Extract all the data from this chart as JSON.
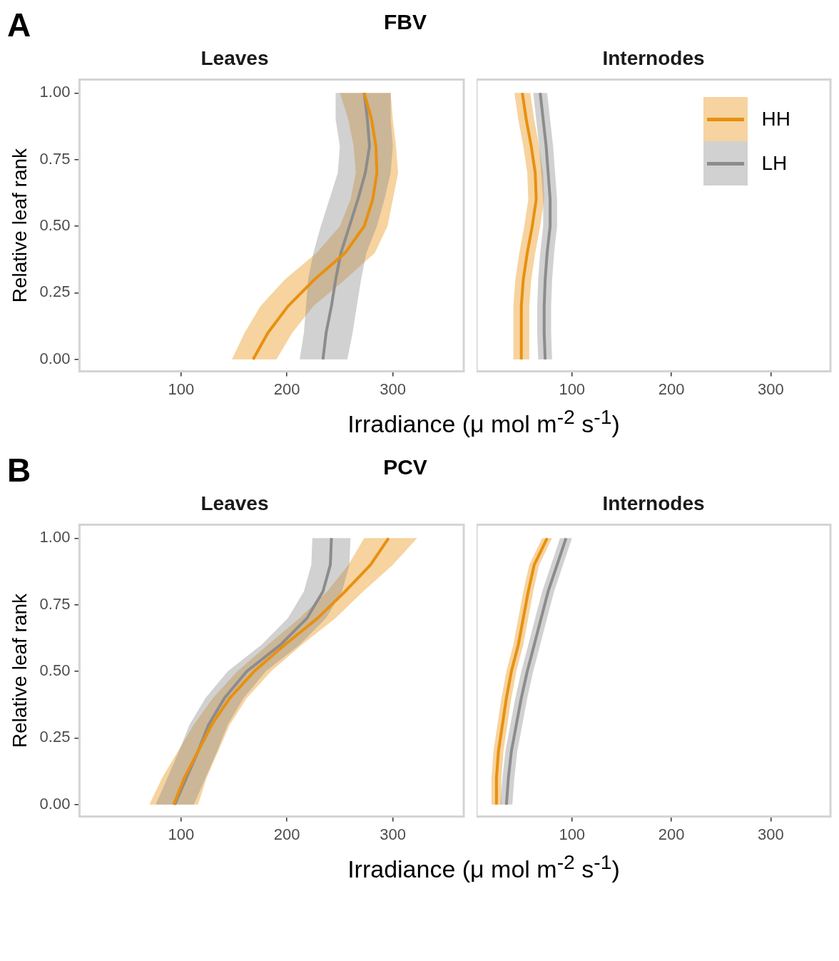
{
  "chart_data": [
    {
      "type": "line",
      "orientation": "horizontal",
      "title": "Leaves",
      "annotations": [
        "A",
        "FBV"
      ],
      "ylabel": "Relative leaf rank",
      "xlabel": "Irradiance (μ mol m$^{-2}$ s$^{-1}$)",
      "grid": false,
      "legend": false,
      "x": [
        0,
        0.1,
        0.2,
        0.3,
        0.4,
        0.5,
        0.6,
        0.7,
        0.8,
        0.9,
        1.0
      ],
      "xlim": [
        4,
        367
      ],
      "xticks": [
        100,
        200,
        300
      ],
      "ylim": [
        -0.045,
        1.05
      ],
      "yticks": [
        {
          "value": 0,
          "label": "0.00"
        },
        {
          "value": 0.25,
          "label": "0.25"
        },
        {
          "value": 0.5,
          "label": "0.50"
        },
        {
          "value": 0.75,
          "label": "0.75"
        },
        {
          "value": 1,
          "label": "1.00"
        }
      ],
      "series": [
        {
          "color": "#e8900f",
          "values": [
            168,
            182,
            201,
            226,
            255,
            273,
            281,
            285,
            284,
            280,
            273
          ],
          "lower": [
            148,
            160,
            175,
            198,
            228,
            250,
            260,
            265,
            263,
            258,
            250
          ],
          "upper": [
            190,
            205,
            225,
            255,
            283,
            295,
            300,
            305,
            303,
            300,
            298
          ]
        },
        {
          "color": "#8c8c8c",
          "values": [
            234,
            237,
            242,
            246,
            251,
            259,
            267,
            274,
            278,
            276,
            273
          ],
          "lower": [
            212,
            216,
            218,
            220,
            225,
            232,
            240,
            248,
            250,
            246,
            246
          ],
          "upper": [
            257,
            262,
            266,
            270,
            275,
            285,
            292,
            298,
            300,
            298,
            298
          ]
        }
      ]
    },
    {
      "type": "line",
      "orientation": "horizontal",
      "title": "Internodes",
      "grid": false,
      "legend": "top right",
      "tick_labels": "x",
      "x": [
        0,
        0.1,
        0.2,
        0.3,
        0.4,
        0.5,
        0.6,
        0.7,
        0.8,
        0.9,
        1.0
      ],
      "xlim": [
        4,
        360
      ],
      "xticks": [
        100,
        200,
        300
      ],
      "ylim": [
        -0.045,
        1.05
      ],
      "series": [
        {
          "name": "HH",
          "color": "#e8900f",
          "values": [
            49,
            49,
            49,
            51,
            55,
            60,
            64,
            63,
            59,
            54,
            50
          ],
          "lower": [
            41,
            41,
            41,
            43,
            47,
            52,
            56,
            55,
            51,
            46,
            42
          ],
          "upper": [
            57,
            57,
            57,
            59,
            63,
            68,
            72,
            71,
            67,
            62,
            58
          ]
        },
        {
          "name": "LH",
          "color": "#8c8c8c",
          "values": [
            73,
            72,
            72,
            73,
            75,
            78,
            78,
            76,
            74,
            71,
            68
          ],
          "lower": [
            66,
            65,
            65,
            66,
            68,
            71,
            71,
            69,
            67,
            64,
            61
          ],
          "upper": [
            80,
            79,
            79,
            80,
            82,
            85,
            85,
            83,
            81,
            78,
            75
          ]
        }
      ]
    },
    {
      "type": "line",
      "orientation": "horizontal",
      "title": "Leaves",
      "annotations": [
        "B",
        "PCV"
      ],
      "ylabel": "Relative leaf rank",
      "xlabel": "Irradiance (μ mol m$^{-2}$ s$^{-1}$)",
      "grid": false,
      "legend": false,
      "x": [
        0,
        0.1,
        0.2,
        0.3,
        0.4,
        0.5,
        0.6,
        0.7,
        0.8,
        0.9,
        1.0
      ],
      "xlim": [
        4,
        367
      ],
      "xticks": [
        100,
        200,
        300
      ],
      "ylim": [
        -0.045,
        1.05
      ],
      "yticks": [
        {
          "value": 0,
          "label": "0.00"
        },
        {
          "value": 0.25,
          "label": "0.25"
        },
        {
          "value": 0.5,
          "label": "0.50"
        },
        {
          "value": 0.75,
          "label": "0.75"
        },
        {
          "value": 1,
          "label": "1.00"
        }
      ],
      "series": [
        {
          "color": "#e8900f",
          "values": [
            93,
            103,
            116,
            129,
            146,
            169,
            198,
            229,
            255,
            279,
            296
          ],
          "lower": [
            70,
            82,
            97,
            112,
            130,
            153,
            182,
            212,
            238,
            258,
            273
          ],
          "upper": [
            116,
            124,
            135,
            146,
            162,
            185,
            214,
            246,
            272,
            300,
            323
          ]
        },
        {
          "color": "#8c8c8c",
          "values": [
            94,
            105,
            116,
            126,
            141,
            162,
            194,
            219,
            234,
            241,
            242
          ],
          "lower": [
            76,
            87,
            98,
            108,
            123,
            144,
            176,
            201,
            216,
            223,
            224
          ],
          "upper": [
            112,
            123,
            134,
            144,
            159,
            180,
            212,
            237,
            252,
            259,
            260
          ]
        }
      ]
    },
    {
      "type": "line",
      "orientation": "horizontal",
      "title": "Internodes",
      "grid": false,
      "legend": false,
      "tick_labels": "x",
      "x": [
        0,
        0.1,
        0.2,
        0.3,
        0.4,
        0.5,
        0.6,
        0.7,
        0.8,
        0.9,
        1.0
      ],
      "xlim": [
        4,
        360
      ],
      "xticks": [
        100,
        200,
        300
      ],
      "ylim": [
        -0.045,
        1.05
      ],
      "series": [
        {
          "color": "#e8900f",
          "values": [
            24,
            24,
            26,
            30,
            34,
            39,
            46,
            51,
            56,
            62,
            75
          ],
          "lower": [
            19,
            19,
            21,
            25,
            29,
            34,
            41,
            46,
            51,
            57,
            70
          ],
          "upper": [
            29,
            29,
            31,
            35,
            39,
            44,
            51,
            56,
            61,
            67,
            80
          ]
        },
        {
          "color": "#8c8c8c",
          "values": [
            34,
            36,
            39,
            44,
            49,
            55,
            62,
            69,
            76,
            85,
            94
          ],
          "lower": [
            28,
            30,
            33,
            38,
            43,
            49,
            56,
            63,
            70,
            79,
            88
          ],
          "upper": [
            40,
            42,
            45,
            50,
            55,
            61,
            68,
            75,
            82,
            91,
            100
          ]
        }
      ]
    }
  ]
}
